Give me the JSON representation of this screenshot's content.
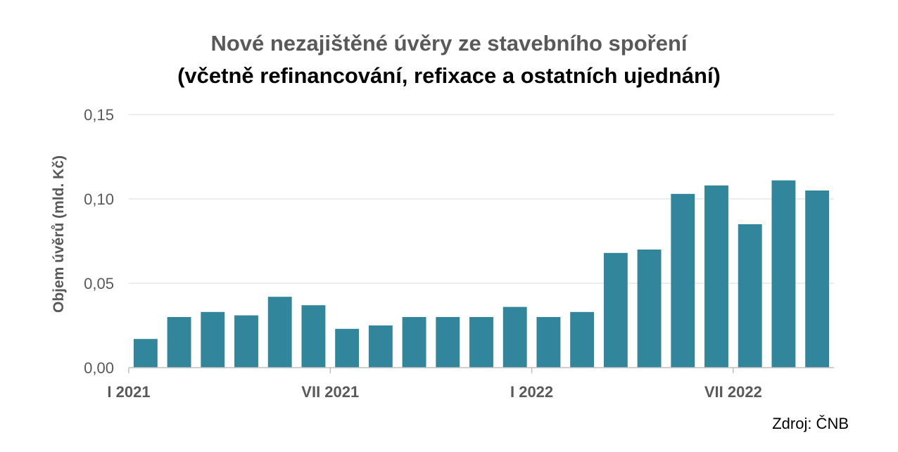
{
  "chart_data": {
    "type": "bar",
    "title": "Nové nezajištěné úvěry ze stavebního spoření",
    "subtitle": "(včetně refinancování, refixace a ostatních ujednání)",
    "ylabel": "Objem úvěrů (mld. Kč)",
    "xlabel": "",
    "ylim": [
      0,
      0.15
    ],
    "yticks": [
      "0,00",
      "0,05",
      "0,10",
      "0,15"
    ],
    "x_tick_labels": [
      {
        "label": "I 2021",
        "index": 0
      },
      {
        "label": "VII 2021",
        "index": 6
      },
      {
        "label": "I 2022",
        "index": 12
      },
      {
        "label": "VII 2022",
        "index": 18
      }
    ],
    "values": [
      0.017,
      0.03,
      0.033,
      0.031,
      0.042,
      0.037,
      0.023,
      0.025,
      0.03,
      0.03,
      0.03,
      0.036,
      0.03,
      0.033,
      0.068,
      0.07,
      0.103,
      0.108,
      0.085,
      0.111,
      0.105
    ],
    "bar_color": "#31869b",
    "grid": true,
    "source": "Zdroj: ČNB"
  }
}
